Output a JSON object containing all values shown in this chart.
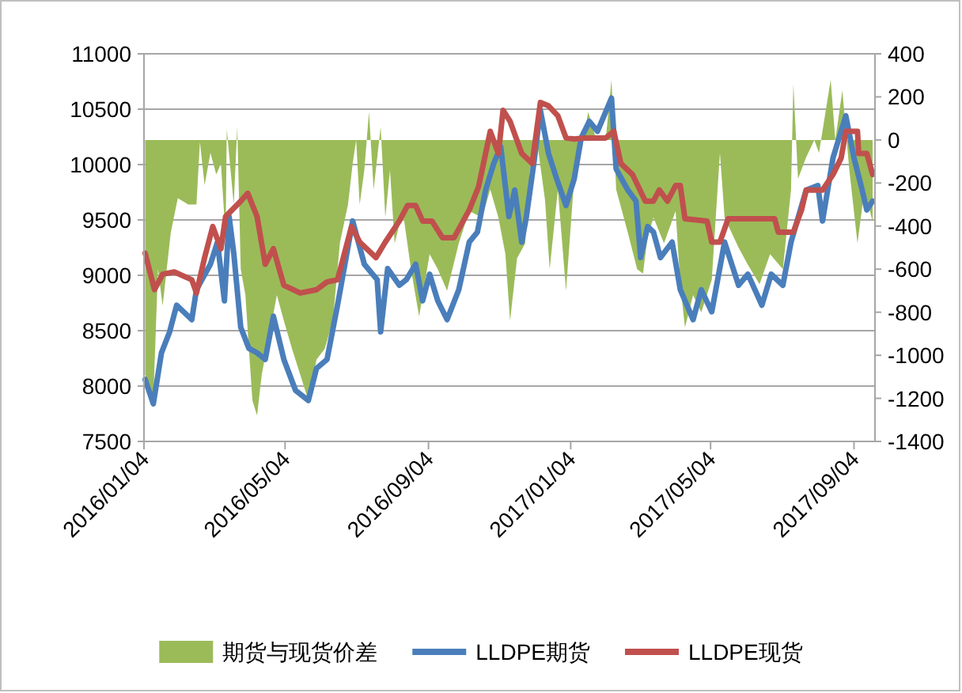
{
  "chart_data": {
    "type": "line",
    "ylim": [
      7500,
      11000
    ],
    "yticks": [
      7500,
      8000,
      8500,
      9000,
      9500,
      10000,
      10500,
      11000
    ],
    "y2lim": [
      -1400,
      400
    ],
    "y2ticks": [
      -1400,
      -1200,
      -1000,
      -800,
      -600,
      -400,
      -200,
      0,
      200,
      400
    ],
    "xlim": [
      "2016-01-04",
      "2017-09-22"
    ],
    "xticks": [
      {
        "value": "2016-01-04",
        "label": "2016/01/04"
      },
      {
        "value": "2016-05-04",
        "label": "2016/05/04"
      },
      {
        "value": "2016-09-04",
        "label": "2016/09/04"
      },
      {
        "value": "2017-01-04",
        "label": "2017/01/04"
      },
      {
        "value": "2017-05-04",
        "label": "2017/05/04"
      },
      {
        "value": "2017-09-04",
        "label": "2017/09/04"
      }
    ],
    "grid": "y",
    "legend": "bottom",
    "series": [
      {
        "name": "期货与现货价差",
        "type": "area",
        "axis": "y2",
        "color": "#9bbb59",
        "x": [
          "2016-01-05",
          "2016-01-12",
          "2016-01-16",
          "2016-01-20",
          "2016-01-27",
          "2016-02-02",
          "2016-02-11",
          "2016-02-18",
          "2016-02-21",
          "2016-02-25",
          "2016-03-01",
          "2016-03-06",
          "2016-03-10",
          "2016-03-14",
          "2016-03-15",
          "2016-03-21",
          "2016-03-24",
          "2016-03-27",
          "2016-03-31",
          "2016-04-03",
          "2016-04-06",
          "2016-04-10",
          "2016-04-14",
          "2016-04-20",
          "2016-04-27",
          "2016-05-03",
          "2016-05-10",
          "2016-05-17",
          "2016-05-24",
          "2016-05-31",
          "2016-06-07",
          "2016-06-14",
          "2016-06-20",
          "2016-06-27",
          "2016-07-01",
          "2016-07-04",
          "2016-07-07",
          "2016-07-11",
          "2016-07-15",
          "2016-07-19",
          "2016-07-25",
          "2016-07-29",
          "2016-08-02",
          "2016-08-06",
          "2016-08-13",
          "2016-08-20",
          "2016-08-27",
          "2016-09-05",
          "2016-09-12",
          "2016-09-20",
          "2016-09-30",
          "2016-10-09",
          "2016-10-20",
          "2016-10-27",
          "2016-11-03",
          "2016-11-09",
          "2016-11-13",
          "2016-11-19",
          "2016-11-26",
          "2016-11-30",
          "2016-12-06",
          "2016-12-13",
          "2016-12-17",
          "2016-12-24",
          "2016-12-31",
          "2017-01-07",
          "2017-01-13",
          "2017-01-19",
          "2017-01-26",
          "2017-02-03",
          "2017-02-08",
          "2017-02-12",
          "2017-02-22",
          "2017-03-02",
          "2017-03-07",
          "2017-03-11",
          "2017-03-16",
          "2017-03-25",
          "2017-04-04",
          "2017-04-08",
          "2017-04-12",
          "2017-04-19",
          "2017-04-26",
          "2017-05-05",
          "2017-05-12",
          "2017-05-16",
          "2017-05-28",
          "2017-06-05",
          "2017-06-15",
          "2017-06-24",
          "2017-07-05",
          "2017-07-12",
          "2017-07-14",
          "2017-07-18",
          "2017-07-25",
          "2017-08-01",
          "2017-08-05",
          "2017-08-15",
          "2017-08-19",
          "2017-08-25",
          "2017-08-31",
          "2017-09-07",
          "2017-09-13",
          "2017-09-20"
        ],
        "values": [
          -1090,
          -1210,
          -600,
          -770,
          -430,
          -270,
          -300,
          -300,
          -10,
          -210,
          -60,
          -160,
          -110,
          -450,
          50,
          -300,
          60,
          -600,
          -720,
          -970,
          -1210,
          -1280,
          -1090,
          -920,
          -720,
          -840,
          -970,
          -1090,
          -1210,
          -1020,
          -970,
          -840,
          -480,
          -300,
          -110,
          0,
          -300,
          -140,
          130,
          -230,
          60,
          -360,
          -140,
          -480,
          -330,
          -600,
          -820,
          -530,
          -600,
          -700,
          -480,
          -330,
          -360,
          -230,
          -360,
          -530,
          -840,
          -550,
          -480,
          -140,
          0,
          -280,
          -600,
          -230,
          -700,
          -180,
          -60,
          130,
          0,
          0,
          280,
          -230,
          -430,
          -600,
          -620,
          -450,
          -360,
          -480,
          -330,
          -670,
          -870,
          -720,
          -800,
          -650,
          -60,
          -360,
          -500,
          -580,
          -670,
          -530,
          -600,
          -230,
          260,
          -180,
          -80,
          0,
          -60,
          280,
          0,
          230,
          -140,
          -480,
          -230,
          -380
        ]
      },
      {
        "name": "LLDPE期货",
        "type": "line",
        "color": "#4a7ebb",
        "x": [
          "2016-01-05",
          "2016-01-12",
          "2016-01-19",
          "2016-01-26",
          "2016-02-01",
          "2016-02-14",
          "2016-02-18",
          "2016-03-01",
          "2016-03-07",
          "2016-03-13",
          "2016-03-17",
          "2016-03-21",
          "2016-03-27",
          "2016-04-03",
          "2016-04-10",
          "2016-04-17",
          "2016-04-24",
          "2016-05-03",
          "2016-05-13",
          "2016-05-24",
          "2016-05-31",
          "2016-06-09",
          "2016-06-18",
          "2016-07-01",
          "2016-07-11",
          "2016-07-22",
          "2016-07-25",
          "2016-07-31",
          "2016-08-10",
          "2016-08-16",
          "2016-08-24",
          "2016-08-30",
          "2016-09-05",
          "2016-09-12",
          "2016-09-20",
          "2016-09-30",
          "2016-10-09",
          "2016-10-16",
          "2016-10-23",
          "2016-10-30",
          "2016-11-05",
          "2016-11-12",
          "2016-11-17",
          "2016-11-23",
          "2016-11-27",
          "2016-12-04",
          "2016-12-09",
          "2016-12-16",
          "2016-12-23",
          "2016-12-31",
          "2017-01-07",
          "2017-01-13",
          "2017-01-20",
          "2017-01-27",
          "2017-02-08",
          "2017-02-12",
          "2017-02-22",
          "2017-03-01",
          "2017-03-05",
          "2017-03-11",
          "2017-03-16",
          "2017-03-22",
          "2017-04-01",
          "2017-04-08",
          "2017-04-19",
          "2017-04-26",
          "2017-05-05",
          "2017-05-16",
          "2017-05-28",
          "2017-06-05",
          "2017-06-17",
          "2017-06-25",
          "2017-07-05",
          "2017-07-12",
          "2017-07-25",
          "2017-08-04",
          "2017-08-08",
          "2017-08-17",
          "2017-08-28",
          "2017-09-04",
          "2017-09-11",
          "2017-09-15",
          "2017-09-20"
        ],
        "values": [
          8060,
          7840,
          8300,
          8490,
          8730,
          8600,
          8870,
          9100,
          9300,
          8770,
          9530,
          9200,
          8530,
          8340,
          8300,
          8240,
          8630,
          8240,
          7960,
          7870,
          8160,
          8240,
          8730,
          9490,
          9100,
          8960,
          8490,
          9060,
          8910,
          8960,
          9100,
          8770,
          9010,
          8770,
          8600,
          8870,
          9300,
          9390,
          9770,
          10010,
          10160,
          9530,
          9770,
          9300,
          9530,
          10060,
          10490,
          10100,
          9870,
          9630,
          9870,
          10240,
          10390,
          10300,
          10600,
          9960,
          9770,
          9670,
          9160,
          9440,
          9390,
          9160,
          9300,
          8870,
          8600,
          8870,
          8670,
          9300,
          8910,
          9010,
          8730,
          9010,
          8910,
          9300,
          9770,
          9810,
          9490,
          10060,
          10440,
          10060,
          9770,
          9590,
          9670
        ]
      },
      {
        "name": "LLDPE现货",
        "type": "line",
        "color": "#c0504d",
        "x": [
          "2016-01-05",
          "2016-01-13",
          "2016-01-20",
          "2016-01-30",
          "2016-02-14",
          "2016-02-18",
          "2016-02-25",
          "2016-03-03",
          "2016-03-10",
          "2016-03-14",
          "2016-03-27",
          "2016-04-02",
          "2016-04-10",
          "2016-04-17",
          "2016-04-24",
          "2016-05-03",
          "2016-05-17",
          "2016-05-31",
          "2016-06-09",
          "2016-06-18",
          "2016-06-30",
          "2016-07-07",
          "2016-07-21",
          "2016-07-29",
          "2016-08-10",
          "2016-08-17",
          "2016-08-24",
          "2016-08-30",
          "2016-09-07",
          "2016-09-16",
          "2016-09-26",
          "2016-10-09",
          "2016-10-17",
          "2016-10-27",
          "2016-11-03",
          "2016-11-07",
          "2016-11-13",
          "2016-11-23",
          "2016-12-02",
          "2016-12-09",
          "2016-12-16",
          "2016-12-24",
          "2016-12-31",
          "2017-01-07",
          "2017-01-16",
          "2017-02-03",
          "2017-02-10",
          "2017-02-16",
          "2017-02-26",
          "2017-03-09",
          "2017-03-16",
          "2017-03-21",
          "2017-03-28",
          "2017-04-04",
          "2017-04-08",
          "2017-04-12",
          "2017-05-01",
          "2017-05-05",
          "2017-05-12",
          "2017-05-19",
          "2017-06-28",
          "2017-07-01",
          "2017-07-14",
          "2017-07-21",
          "2017-07-25",
          "2017-08-08",
          "2017-08-17",
          "2017-08-24",
          "2017-08-28",
          "2017-09-07",
          "2017-09-08",
          "2017-09-15",
          "2017-09-20"
        ],
        "values": [
          9200,
          8870,
          9010,
          9030,
          8960,
          8840,
          9160,
          9440,
          9240,
          9530,
          9670,
          9740,
          9530,
          9100,
          9240,
          8910,
          8840,
          8870,
          8940,
          8960,
          9440,
          9300,
          9160,
          9300,
          9490,
          9630,
          9630,
          9490,
          9490,
          9340,
          9340,
          9590,
          9800,
          10300,
          10100,
          10490,
          10390,
          10100,
          10010,
          10560,
          10530,
          10440,
          10240,
          10230,
          10240,
          10240,
          10300,
          10010,
          9910,
          9670,
          9670,
          9770,
          9670,
          9810,
          9810,
          9510,
          9490,
          9300,
          9300,
          9510,
          9510,
          9390,
          9390,
          9590,
          9770,
          9770,
          9910,
          10060,
          10300,
          10300,
          10100,
          10100,
          9910
        ]
      }
    ]
  }
}
